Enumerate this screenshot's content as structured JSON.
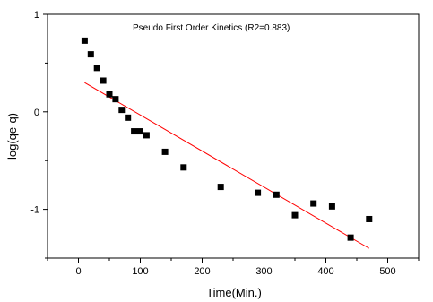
{
  "chart_data": {
    "type": "scatter",
    "title": "Pseudo First Order Kinetics (R2=0.883)",
    "xlabel": "Time(Min.)",
    "ylabel": "log(qe-q)",
    "xlim": [
      -50,
      550
    ],
    "ylim": [
      -1.5,
      1
    ],
    "x_ticks": [
      0,
      100,
      200,
      300,
      400,
      500
    ],
    "y_ticks": [
      -1,
      0,
      1
    ],
    "grid": false,
    "legend": "none",
    "series": [
      {
        "type": "scatter",
        "marker": "square",
        "color": "#000000",
        "x": [
          10,
          20,
          30,
          40,
          50,
          60,
          70,
          80,
          90,
          100,
          110,
          140,
          170,
          230,
          290,
          320,
          350,
          380,
          410,
          440,
          470
        ],
        "y": [
          0.73,
          0.59,
          0.45,
          0.32,
          0.18,
          0.13,
          0.02,
          -0.06,
          -0.2,
          -0.2,
          -0.24,
          -0.41,
          -0.57,
          -0.77,
          -0.83,
          -0.85,
          -1.06,
          -0.94,
          -0.97,
          -1.29,
          -1.1
        ]
      },
      {
        "type": "line",
        "color": "#ff0000",
        "x": [
          10,
          470
        ],
        "y": [
          0.3,
          -1.4
        ]
      }
    ]
  }
}
